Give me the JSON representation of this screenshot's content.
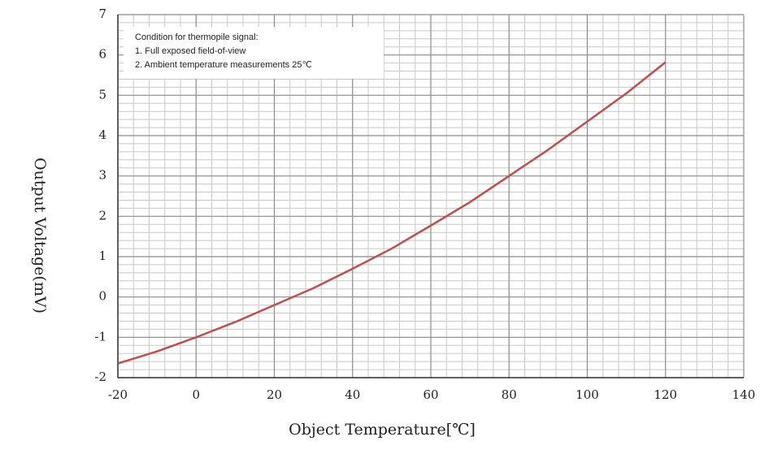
{
  "chart_data": {
    "type": "line",
    "xlabel": "Object Temperature[℃]",
    "ylabel": "Output Voltage(mV)",
    "annotations": [
      "Condition for thermopile signal:",
      "1.  Full exposed field-of-view",
      "2.  Ambient temperature measurements 25℃"
    ],
    "x": [
      -20,
      -10,
      0,
      10,
      20,
      30,
      40,
      50,
      60,
      70,
      80,
      90,
      100,
      110,
      120
    ],
    "series": [
      {
        "color": "#c0504d",
        "values": [
          -1.65,
          -1.35,
          -1.0,
          -0.62,
          -0.2,
          0.22,
          0.7,
          1.2,
          1.77,
          2.35,
          3.0,
          3.65,
          4.35,
          5.05,
          5.82
        ]
      }
    ],
    "xlim": [
      -20,
      140
    ],
    "xticks": [
      -20,
      0,
      20,
      40,
      60,
      80,
      100,
      120,
      140
    ],
    "ylim": [
      -2,
      7
    ],
    "yticks": [
      -2,
      -1,
      0,
      1,
      2,
      3,
      4,
      5,
      6,
      7
    ],
    "grid": true
  }
}
